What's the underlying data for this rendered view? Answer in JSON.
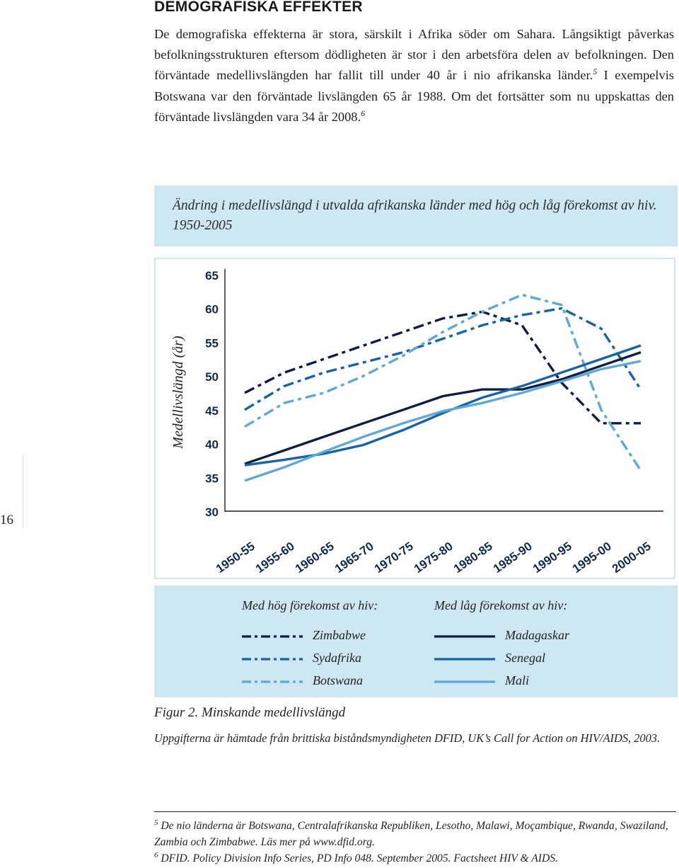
{
  "heading": "DEMOGRAFISKA EFFEKTER",
  "intro": {
    "text_before_5": "De demografiska effekterna är stora, särskilt i Afrika söder om Sahara. Långsiktigt påverkas befolkningsstrukturen eftersom dödligheten är stor i den arbetsföra delen av befolkningen. Den förväntade medellivslängden har fallit till under 40 år i nio afrikanska länder.",
    "sup_5": "5",
    "text_before_6": " I exempelvis Botswana var den förväntade livslängden 65 år 1988. Om det fortsätter som nu uppskattas den förväntade livslängden vara 34 år 2008.",
    "sup_6": "6"
  },
  "figure_title": "Ändring i medellivslängd i utvalda afrikanska länder med hög och låg förekomst av hiv. 1950-2005",
  "chart_data": {
    "type": "line",
    "title": "Ändring i medellivslängd i utvalda afrikanska länder med hög och låg förekomst av hiv. 1950-2005",
    "xlabel": "",
    "ylabel": "Medellivslängd (år)",
    "categories": [
      "1950-55",
      "1955-60",
      "1960-65",
      "1965-70",
      "1970-75",
      "1975-80",
      "1980-85",
      "1985-90",
      "1990-95",
      "1995-00",
      "2000-05"
    ],
    "y_ticks": [
      "30",
      "35",
      "40",
      "45",
      "50",
      "55",
      "60",
      "65"
    ],
    "ylim": [
      30,
      65
    ],
    "grid": false,
    "legend_groups": [
      "Med hög förekomst av hiv:",
      "Med låg förekomst av hiv:"
    ],
    "series": [
      {
        "name": "Zimbabwe",
        "group": "high",
        "style": "dashdot",
        "color": "#0e1e45",
        "values": [
          47.5,
          50.5,
          52.5,
          54.5,
          56.5,
          58.5,
          59.5,
          57.5,
          49.0,
          43.0,
          43.0
        ]
      },
      {
        "name": "Sydafrika",
        "group": "high",
        "style": "dashdot",
        "color": "#1664a6",
        "values": [
          45.0,
          48.5,
          50.5,
          52.0,
          53.5,
          55.5,
          57.5,
          59.0,
          60.0,
          57.0,
          48.0
        ]
      },
      {
        "name": "Botswana",
        "group": "high",
        "style": "dashdot",
        "color": "#5ea9d8",
        "values": [
          42.5,
          46.0,
          47.5,
          50.0,
          53.0,
          56.5,
          59.5,
          62.0,
          60.5,
          45.0,
          36.0
        ]
      },
      {
        "name": "Madagaskar",
        "group": "low",
        "style": "solid",
        "color": "#0e1e45",
        "values": [
          37.0,
          39.0,
          41.0,
          43.0,
          45.0,
          47.0,
          48.0,
          48.0,
          49.5,
          51.5,
          53.5
        ]
      },
      {
        "name": "Senegal",
        "group": "low",
        "style": "solid",
        "color": "#1664a6",
        "values": [
          36.8,
          37.6,
          38.5,
          39.8,
          42.0,
          44.5,
          46.8,
          48.5,
          50.5,
          52.5,
          54.5
        ]
      },
      {
        "name": "Mali",
        "group": "low",
        "style": "solid",
        "color": "#5ea9d8",
        "values": [
          34.5,
          36.5,
          38.8,
          41.0,
          43.0,
          44.8,
          46.0,
          47.5,
          49.2,
          51.0,
          52.2
        ]
      }
    ]
  },
  "figure_caption": "Figur 2. Minskande medellivslängd",
  "figure_source": "Uppgifterna är hämtade från brittiska biståndsmyndigheten DFID, UK’s Call for Action on HIV/AIDS, 2003.",
  "footnotes": [
    {
      "num": "5",
      "text": "De nio länderna är Botswana, Centralafrikanska Republiken, Lesotho, Malawi, Moçambique, Rwanda, Swaziland, Zambia och Zimbabwe. Läs mer på www.dfid.org."
    },
    {
      "num": "6",
      "text": "DFID. Policy Division Info Series, PD Info 048. September 2005. Factsheet HIV & AIDS."
    }
  ],
  "page_number": "16"
}
